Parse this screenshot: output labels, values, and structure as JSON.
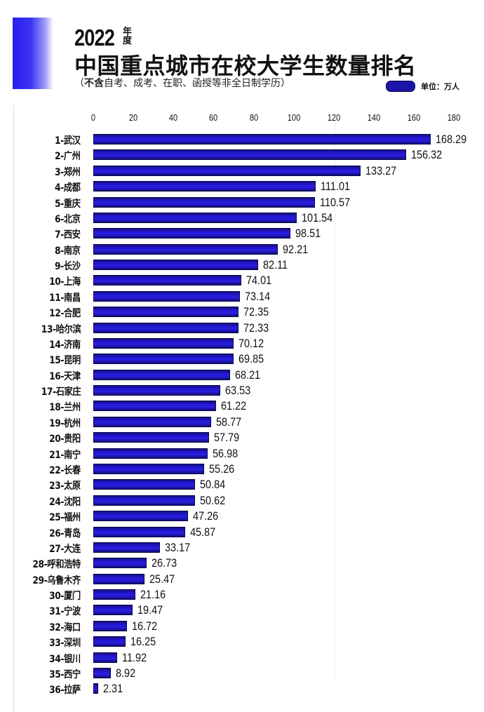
{
  "header": {
    "year": "2022",
    "year_suffix": "年度",
    "title": "中国重点城市在校大学生数量排名",
    "subtitle_open": "（",
    "subtitle_bold": "不含",
    "subtitle_rest": "自考、成考、在职、函授等非全日制学历）",
    "legend_label": "单位：万人"
  },
  "colors": {
    "bar": "#1f17c8",
    "bar_border": "#0a0740",
    "accent_block": "#2a1cf0"
  },
  "chart_data": {
    "type": "bar",
    "orientation": "horizontal",
    "title": "2022年度 中国重点城市在校大学生数量排名",
    "subtitle": "（不含自考、成考、在职、函授等非全日制学历）",
    "unit": "万人",
    "xlabel": "",
    "ylabel": "",
    "xlim": [
      0,
      180
    ],
    "x_ticks": [
      0,
      20,
      40,
      60,
      80,
      100,
      120,
      140,
      160,
      180
    ],
    "x_axis_position": "top",
    "grid": false,
    "legend": {
      "position": "top-right",
      "entries": [
        "单位：万人"
      ]
    },
    "categories": [
      "1-武汉",
      "2-广州",
      "3-郑州",
      "4-成都",
      "5-重庆",
      "6-北京",
      "7-西安",
      "8-南京",
      "9-长沙",
      "10-上海",
      "11-南昌",
      "12-合肥",
      "13-哈尔滨",
      "14-济南",
      "15-昆明",
      "16-天津",
      "17-石家庄",
      "18-兰州",
      "19-杭州",
      "20-贵阳",
      "21-南宁",
      "22-长春",
      "23-太原",
      "24-沈阳",
      "25-福州",
      "26-青岛",
      "27-大连",
      "28-呼和浩特",
      "29-乌鲁木齐",
      "30-厦门",
      "31-宁波",
      "32-海口",
      "33-深圳",
      "34-银川",
      "35-西宁",
      "36-拉萨"
    ],
    "values": [
      168.29,
      156.32,
      133.27,
      111.01,
      110.57,
      101.54,
      98.51,
      92.21,
      82.11,
      74.01,
      73.14,
      72.35,
      72.33,
      70.12,
      69.85,
      68.21,
      63.53,
      61.22,
      58.77,
      57.79,
      56.98,
      55.26,
      50.84,
      50.62,
      47.26,
      45.87,
      33.17,
      26.73,
      25.47,
      21.16,
      19.47,
      16.72,
      16.25,
      11.92,
      8.92,
      2.31
    ],
    "value_labels": [
      "168.29",
      "156.32",
      "133.27",
      "111.01",
      "110.57",
      "101.54",
      "98.51",
      "92.21",
      "82.11",
      "74.01",
      "73.14",
      "72.35",
      "72.33",
      "70.12",
      "69.85",
      "68.21",
      "63.53",
      "61.22",
      "58.77",
      "57.79",
      "56.98",
      "55.26",
      "50.84",
      "50.62",
      "47.26",
      "45.87",
      "33.17",
      "26.73",
      "25.47",
      "21.16",
      "19.47",
      "16.72",
      "16.25",
      "11.92",
      "8.92",
      "2.31"
    ]
  }
}
